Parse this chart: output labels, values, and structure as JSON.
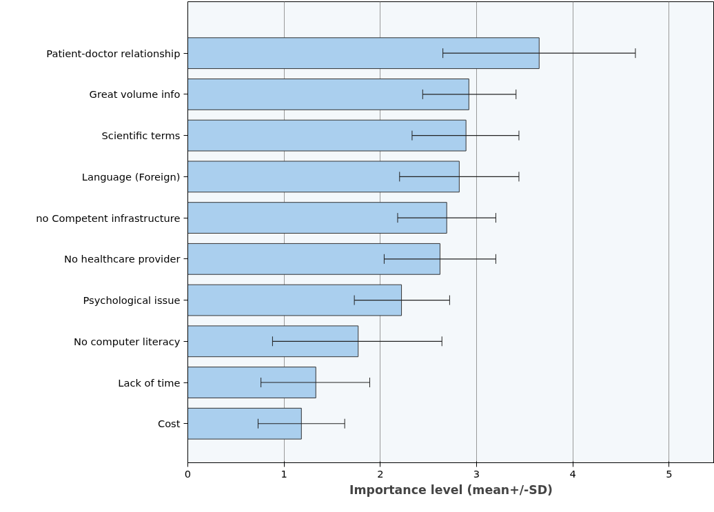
{
  "chart_data": {
    "type": "bar",
    "orientation": "horizontal",
    "xlabel": "Importance level (mean+/-SD)",
    "categories": [
      "Patient-doctor relationship",
      "Great volume info",
      "Scientific terms",
      "Language (Foreign)",
      "no Competent infrastructure",
      "No healthcare provider",
      "Psychological issue",
      "No computer literacy",
      "Lack of time",
      "Cost"
    ],
    "values": [
      3.65,
      2.92,
      2.89,
      2.82,
      2.69,
      2.62,
      2.22,
      1.77,
      1.33,
      1.18
    ],
    "errors": [
      [
        2.65,
        4.65
      ],
      [
        2.44,
        3.41
      ],
      [
        2.33,
        3.44
      ],
      [
        2.2,
        3.44
      ],
      [
        2.18,
        3.2
      ],
      [
        2.04,
        3.2
      ],
      [
        1.73,
        2.72
      ],
      [
        0.88,
        2.64
      ],
      [
        0.76,
        1.89
      ],
      [
        0.73,
        1.63
      ]
    ],
    "color": "#aacfee",
    "xlim": [
      0,
      5.47
    ],
    "xticks": [
      0,
      1,
      2,
      3,
      4,
      5
    ],
    "grid": "x"
  }
}
